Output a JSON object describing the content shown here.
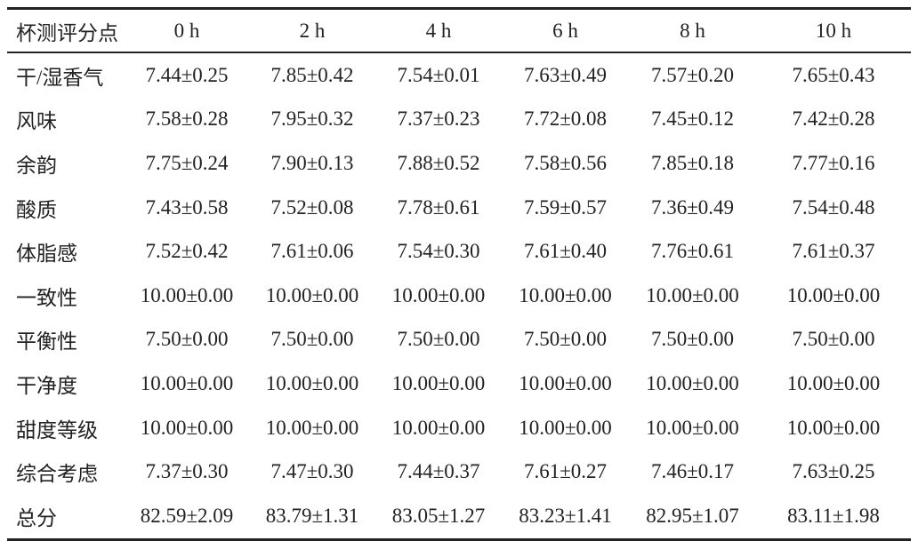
{
  "table": {
    "header": [
      "杯测评分点",
      "0 h",
      "2 h",
      "4 h",
      "6 h",
      "8 h",
      "10 h"
    ],
    "rows": [
      [
        "干/湿香气",
        "7.44±0.25",
        "7.85±0.42",
        "7.54±0.01",
        "7.63±0.49",
        "7.57±0.20",
        "7.65±0.43"
      ],
      [
        "风味",
        "7.58±0.28",
        "7.95±0.32",
        "7.37±0.23",
        "7.72±0.08",
        "7.45±0.12",
        "7.42±0.28"
      ],
      [
        "余韵",
        "7.75±0.24",
        "7.90±0.13",
        "7.88±0.52",
        "7.58±0.56",
        "7.85±0.18",
        "7.77±0.16"
      ],
      [
        "酸质",
        "7.43±0.58",
        "7.52±0.08",
        "7.78±0.61",
        "7.59±0.57",
        "7.36±0.49",
        "7.54±0.48"
      ],
      [
        "体脂感",
        "7.52±0.42",
        "7.61±0.06",
        "7.54±0.30",
        "7.61±0.40",
        "7.76±0.61",
        "7.61±0.37"
      ],
      [
        "一致性",
        "10.00±0.00",
        "10.00±0.00",
        "10.00±0.00",
        "10.00±0.00",
        "10.00±0.00",
        "10.00±0.00"
      ],
      [
        "平衡性",
        "7.50±0.00",
        "7.50±0.00",
        "7.50±0.00",
        "7.50±0.00",
        "7.50±0.00",
        "7.50±0.00"
      ],
      [
        "干净度",
        "10.00±0.00",
        "10.00±0.00",
        "10.00±0.00",
        "10.00±0.00",
        "10.00±0.00",
        "10.00±0.00"
      ],
      [
        "甜度等级",
        "10.00±0.00",
        "10.00±0.00",
        "10.00±0.00",
        "10.00±0.00",
        "10.00±0.00",
        "10.00±0.00"
      ],
      [
        "综合考虑",
        "7.37±0.30",
        "7.47±0.30",
        "7.44±0.37",
        "7.61±0.27",
        "7.46±0.17",
        "7.63±0.25"
      ],
      [
        "总分",
        "82.59±2.09",
        "83.79±1.31",
        "83.05±1.27",
        "83.23±1.41",
        "82.95±1.07",
        "83.11±1.98"
      ]
    ]
  }
}
